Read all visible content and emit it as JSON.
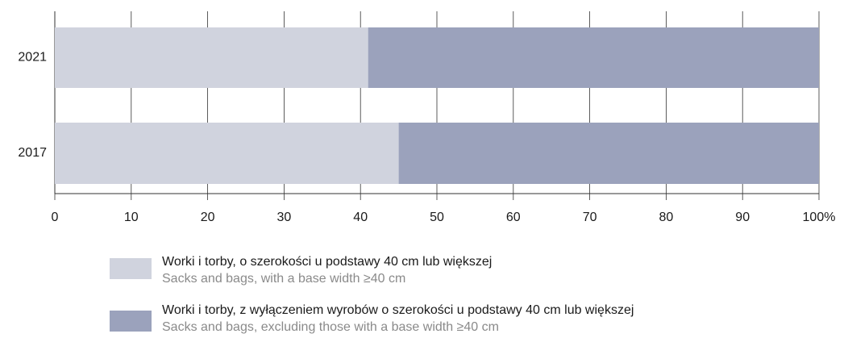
{
  "chart_data": {
    "type": "stacked-barh",
    "categories": [
      "2021",
      "2017"
    ],
    "series": [
      {
        "name": "Worki i torby, o szerokości u podstawy 40 cm lub większej",
        "name_en": "Sacks and bags, with a base width ≥40 cm",
        "color": "#d0d3de",
        "values": [
          41,
          45
        ]
      },
      {
        "name": "Worki i torby, z wyłączeniem wyrobów o szerokości u podstawy 40 cm lub większej",
        "name_en": "Sacks and bags, excluding those with a base width ≥40 cm",
        "color": "#9ba2bc",
        "values": [
          59,
          55
        ]
      }
    ],
    "xlim": [
      0,
      100
    ],
    "xticks": [
      0,
      10,
      20,
      30,
      40,
      50,
      60,
      70,
      80,
      90,
      {
        "value": 100,
        "label": "100%"
      }
    ],
    "grid": true
  }
}
